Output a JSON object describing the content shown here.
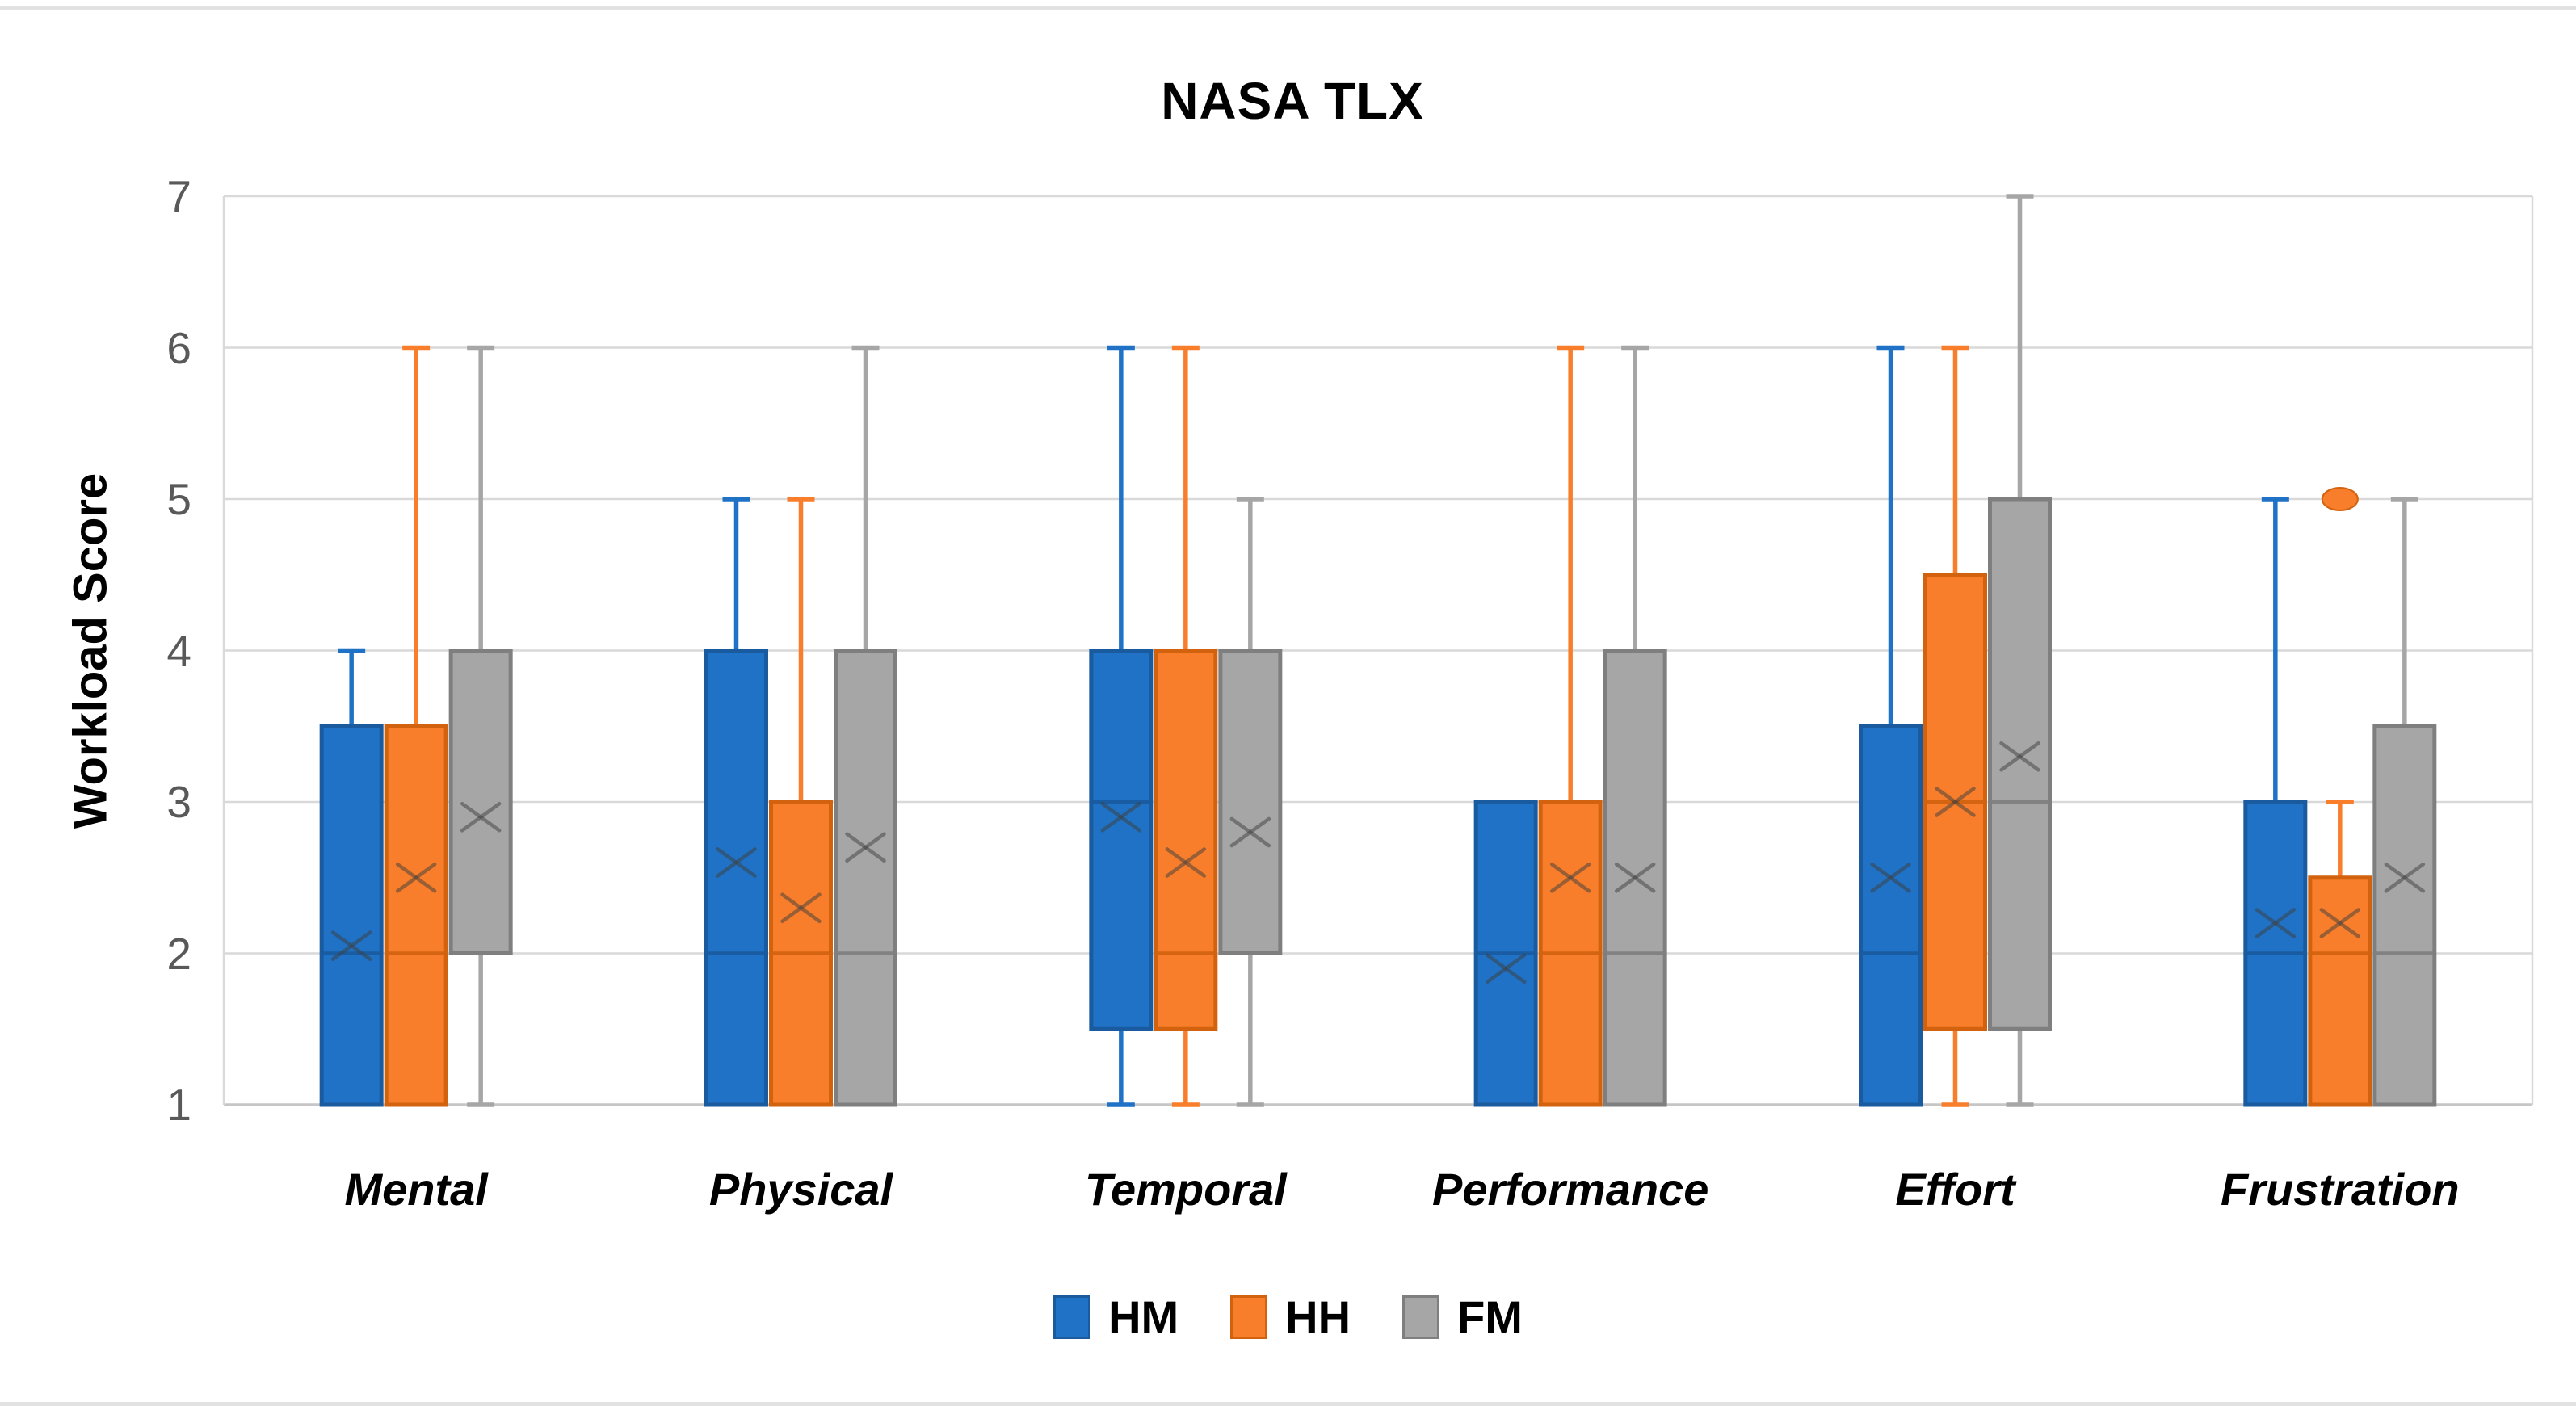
{
  "chart_data": {
    "type": "box",
    "title": "NASA TLX",
    "ylabel": "Workload Score",
    "xlabel": "",
    "ylim": [
      1,
      7
    ],
    "y_ticks": [
      1,
      2,
      3,
      4,
      5,
      6,
      7
    ],
    "grid": true,
    "legend_position": "bottom",
    "categories": [
      "Mental",
      "Physical",
      "Temporal",
      "Performance",
      "Effort",
      "Frustration"
    ],
    "series": [
      {
        "name": "HM",
        "fill": "#1F72C5",
        "border": "#1A5A9E",
        "boxes": [
          {
            "min": 1,
            "q1": 1,
            "median": 2,
            "q3": 3.5,
            "max": 4,
            "mean": 2.05
          },
          {
            "min": 1,
            "q1": 1,
            "median": 2,
            "q3": 4,
            "max": 5,
            "mean": 2.6
          },
          {
            "min": 1,
            "q1": 1.5,
            "median": 3,
            "q3": 4,
            "max": 6,
            "mean": 2.9
          },
          {
            "min": 1,
            "q1": 1,
            "median": 2,
            "q3": 3,
            "max": 3,
            "mean": 1.9
          },
          {
            "min": 1,
            "q1": 1,
            "median": 2,
            "q3": 3.5,
            "max": 6,
            "mean": 2.5
          },
          {
            "min": 1,
            "q1": 1,
            "median": 2,
            "q3": 3,
            "max": 5,
            "mean": 2.2
          }
        ]
      },
      {
        "name": "HH",
        "fill": "#F87E2B",
        "border": "#D2620E",
        "boxes": [
          {
            "min": 1,
            "q1": 1,
            "median": 2,
            "q3": 3.5,
            "max": 6,
            "mean": 2.5
          },
          {
            "min": 1,
            "q1": 1,
            "median": 2,
            "q3": 3,
            "max": 5,
            "mean": 2.3
          },
          {
            "min": 1,
            "q1": 1.5,
            "median": 2,
            "q3": 4,
            "max": 6,
            "mean": 2.6
          },
          {
            "min": 1,
            "q1": 1,
            "median": 2,
            "q3": 3,
            "max": 6,
            "mean": 2.5
          },
          {
            "min": 1,
            "q1": 1.5,
            "median": 3,
            "q3": 4.5,
            "max": 6,
            "mean": 3.0
          },
          {
            "min": 1,
            "q1": 1,
            "median": 2,
            "q3": 2.5,
            "max": 3,
            "mean": 2.2,
            "outliers": [
              5
            ]
          }
        ]
      },
      {
        "name": "FM",
        "fill": "#A6A6A6",
        "border": "#7F7F7F",
        "boxes": [
          {
            "min": 1,
            "q1": 2,
            "median": 2,
            "q3": 4,
            "max": 6,
            "mean": 2.9
          },
          {
            "min": 1,
            "q1": 1,
            "median": 2,
            "q3": 4,
            "max": 6,
            "mean": 2.7
          },
          {
            "min": 1,
            "q1": 2,
            "median": 2,
            "q3": 4,
            "max": 5,
            "mean": 2.8
          },
          {
            "min": 1,
            "q1": 1,
            "median": 2,
            "q3": 4,
            "max": 6,
            "mean": 2.5
          },
          {
            "min": 1,
            "q1": 1.5,
            "median": 3,
            "q3": 5,
            "max": 7,
            "mean": 3.3
          },
          {
            "min": 1,
            "q1": 1,
            "median": 2,
            "q3": 3.5,
            "max": 5,
            "mean": 2.5
          }
        ]
      }
    ]
  },
  "colors": {
    "gridline": "#D9D9D9",
    "axis_line": "#C6C6C6",
    "plot_border": "#D9D9D9",
    "tick_text": "#595959",
    "mean_marker": "#3F3F3F",
    "page_rule": "#E2E2E2",
    "title_text": "#000000"
  }
}
